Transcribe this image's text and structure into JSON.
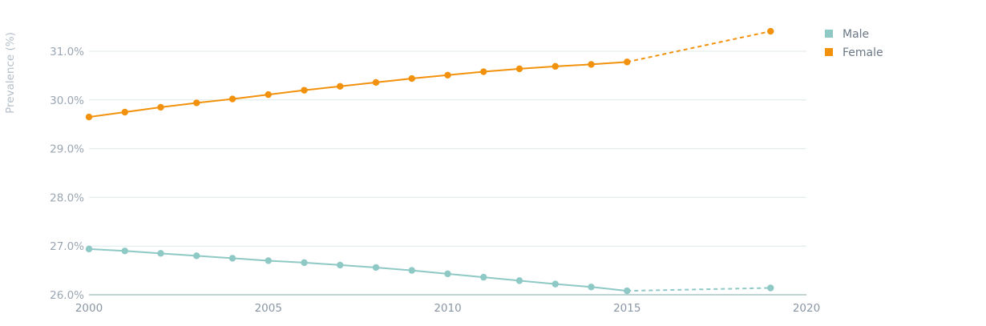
{
  "chart_data": {
    "type": "line",
    "ylabel": "Prevalence (%)",
    "xlabel": "",
    "ylim": [
      26.0,
      31.0
    ],
    "xlim": [
      2000,
      2020
    ],
    "y_ticks": [
      "26.0%",
      "27.0%",
      "28.0%",
      "29.0%",
      "30.0%",
      "31.0%"
    ],
    "y_tick_values": [
      26,
      27,
      28,
      29,
      30,
      31
    ],
    "x_ticks": [
      "2000",
      "2005",
      "2010",
      "2015",
      "2020"
    ],
    "x_tick_values": [
      2000,
      2005,
      2010,
      2015,
      2020
    ],
    "grid": true,
    "legend_position": "right",
    "series": [
      {
        "name": "Male",
        "color": "#8ec9c6",
        "x": [
          2000,
          2001,
          2002,
          2003,
          2004,
          2005,
          2006,
          2007,
          2008,
          2009,
          2010,
          2011,
          2012,
          2013,
          2014,
          2015
        ],
        "values": [
          26.94,
          26.9,
          26.85,
          26.8,
          26.75,
          26.7,
          26.66,
          26.61,
          26.56,
          26.5,
          26.43,
          26.36,
          26.29,
          26.22,
          26.16,
          26.08
        ],
        "projection": {
          "x": [
            2015,
            2019
          ],
          "values": [
            26.08,
            26.14
          ]
        }
      },
      {
        "name": "Female",
        "color": "#f2920c",
        "x": [
          2000,
          2001,
          2002,
          2003,
          2004,
          2005,
          2006,
          2007,
          2008,
          2009,
          2010,
          2011,
          2012,
          2013,
          2014,
          2015
        ],
        "values": [
          29.65,
          29.75,
          29.85,
          29.94,
          30.02,
          30.11,
          30.2,
          30.28,
          30.36,
          30.44,
          30.51,
          30.58,
          30.64,
          30.69,
          30.73,
          30.78
        ],
        "projection": {
          "x": [
            2015,
            2019
          ],
          "values": [
            30.78,
            31.41
          ]
        }
      }
    ]
  }
}
